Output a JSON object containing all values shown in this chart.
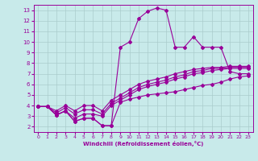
{
  "bg_color": "#c8eaea",
  "grid_color": "#aacccc",
  "line_color": "#990099",
  "marker": "D",
  "markersize": 2.0,
  "linewidth": 0.8,
  "xlabel": "Windchill (Refroidissement éolien,°C)",
  "xlim": [
    -0.5,
    23.5
  ],
  "ylim": [
    1.5,
    13.5
  ],
  "xticks": [
    0,
    1,
    2,
    3,
    4,
    5,
    6,
    7,
    8,
    9,
    10,
    11,
    12,
    13,
    14,
    15,
    16,
    17,
    18,
    19,
    20,
    21,
    22,
    23
  ],
  "yticks": [
    2,
    3,
    4,
    5,
    6,
    7,
    8,
    9,
    10,
    11,
    12,
    13
  ],
  "series": [
    [
      3.9,
      3.9,
      3.1,
      3.5,
      2.5,
      2.8,
      2.8,
      2.1,
      2.1,
      9.5,
      10.0,
      12.2,
      12.9,
      13.2,
      13.0,
      9.5,
      9.5,
      10.5,
      9.5,
      9.5,
      9.5,
      7.2,
      7.0,
      7.0
    ],
    [
      3.9,
      3.9,
      3.5,
      4.0,
      3.5,
      4.0,
      4.0,
      3.5,
      4.5,
      5.0,
      5.5,
      6.0,
      6.3,
      6.5,
      6.7,
      7.0,
      7.2,
      7.4,
      7.5,
      7.6,
      7.6,
      7.7,
      7.7,
      7.7
    ],
    [
      3.9,
      3.9,
      3.3,
      3.8,
      3.2,
      3.6,
      3.6,
      3.2,
      4.2,
      4.7,
      5.2,
      5.7,
      6.0,
      6.2,
      6.4,
      6.7,
      6.9,
      7.2,
      7.3,
      7.5,
      7.5,
      7.6,
      7.6,
      7.6
    ],
    [
      3.9,
      3.9,
      3.1,
      3.5,
      2.8,
      3.2,
      3.2,
      3.0,
      4.0,
      4.5,
      5.0,
      5.5,
      5.8,
      6.0,
      6.2,
      6.5,
      6.7,
      7.0,
      7.1,
      7.3,
      7.4,
      7.5,
      7.5,
      7.5
    ],
    [
      3.9,
      3.9,
      3.1,
      3.5,
      2.5,
      2.8,
      2.8,
      2.1,
      2.1,
      4.3,
      4.6,
      4.8,
      5.0,
      5.1,
      5.2,
      5.3,
      5.5,
      5.7,
      5.9,
      6.0,
      6.2,
      6.5,
      6.7,
      6.8
    ]
  ]
}
